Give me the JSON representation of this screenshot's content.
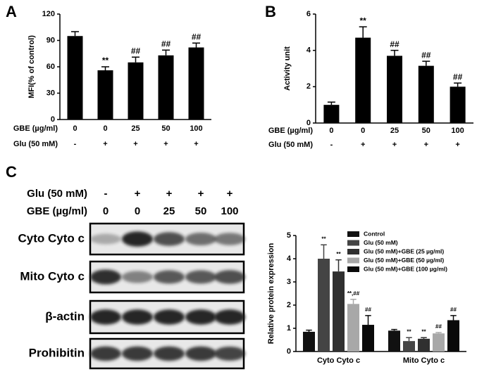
{
  "chart_data": [
    {
      "type": "bar",
      "panel": "A",
      "ylabel": "MFI(% of control)",
      "ylim": [
        0,
        120
      ],
      "yticks": [
        0,
        30,
        60,
        90,
        120
      ],
      "color": "#000000",
      "values": [
        95,
        56,
        65,
        73,
        82
      ],
      "errors": [
        5,
        4,
        6,
        6,
        5
      ],
      "annotations": [
        null,
        "**",
        "##",
        "##",
        "##"
      ],
      "row_labels": [
        "GBE (µg/ml)",
        "Glu (50 mM)"
      ],
      "rows": [
        [
          "0",
          "0",
          "25",
          "50",
          "100"
        ],
        [
          "-",
          "+",
          "+",
          "+",
          "+"
        ]
      ]
    },
    {
      "type": "bar",
      "panel": "B",
      "ylabel": "Activity unit",
      "ylim": [
        0,
        6
      ],
      "yticks": [
        0,
        2,
        4,
        6
      ],
      "color": "#000000",
      "values": [
        1.0,
        4.7,
        3.7,
        3.15,
        2.0
      ],
      "errors": [
        0.15,
        0.6,
        0.3,
        0.25,
        0.2
      ],
      "annotations": [
        null,
        "**",
        "##",
        "##",
        "##"
      ],
      "row_labels": [
        "GBE (µg/ml)",
        "Glu (50 mM)"
      ],
      "rows": [
        [
          "0",
          "0",
          "25",
          "50",
          "100"
        ],
        [
          "-",
          "+",
          "+",
          "+",
          "+"
        ]
      ]
    },
    {
      "type": "bar",
      "ylabel": "Relative protein expression",
      "ylim": [
        0,
        5
      ],
      "yticks": [
        0,
        1,
        2,
        3,
        4,
        5
      ],
      "categories": [
        "Cyto Cyto c",
        "Mito Cyto c"
      ],
      "series": [
        {
          "name": "Control",
          "color": "#111111",
          "values": [
            0.85,
            0.9
          ],
          "errors": [
            0.07,
            0.05
          ],
          "annotations": [
            null,
            null
          ]
        },
        {
          "name": "Glu (50 mM)",
          "color": "#444444",
          "values": [
            4.0,
            0.45
          ],
          "errors": [
            0.6,
            0.15
          ],
          "annotations": [
            "**",
            "**"
          ]
        },
        {
          "name": "Glu (50 mM)+GBE (25 µg/ml)",
          "color": "#303030",
          "values": [
            3.45,
            0.55
          ],
          "errors": [
            0.5,
            0.05
          ],
          "annotations": [
            "**",
            "**"
          ]
        },
        {
          "name": "Glu (50 mM)+GBE (50 µg/ml)",
          "color": "#a8a8a8",
          "values": [
            2.05,
            0.78
          ],
          "errors": [
            0.2,
            0.04
          ],
          "annotations": [
            "**,##",
            "##"
          ]
        },
        {
          "name": "Glu (50 mM)+GBE (100 µg/ml)",
          "color": "#0a0a0a",
          "values": [
            1.15,
            1.35
          ],
          "errors": [
            0.4,
            0.2
          ],
          "annotations": [
            "##",
            "##"
          ]
        }
      ]
    }
  ],
  "blot": {
    "panel": "C",
    "header_labels": [
      "Glu (50 mM)",
      "GBE (µg/ml)"
    ],
    "header_rows": [
      [
        "-",
        "+",
        "+",
        "+",
        "+"
      ],
      [
        "0",
        "0",
        "25",
        "50",
        "100"
      ]
    ],
    "bands": [
      "Cyto Cyto c",
      "Mito Cyto c",
      "β-actin",
      "Prohibitin"
    ]
  }
}
